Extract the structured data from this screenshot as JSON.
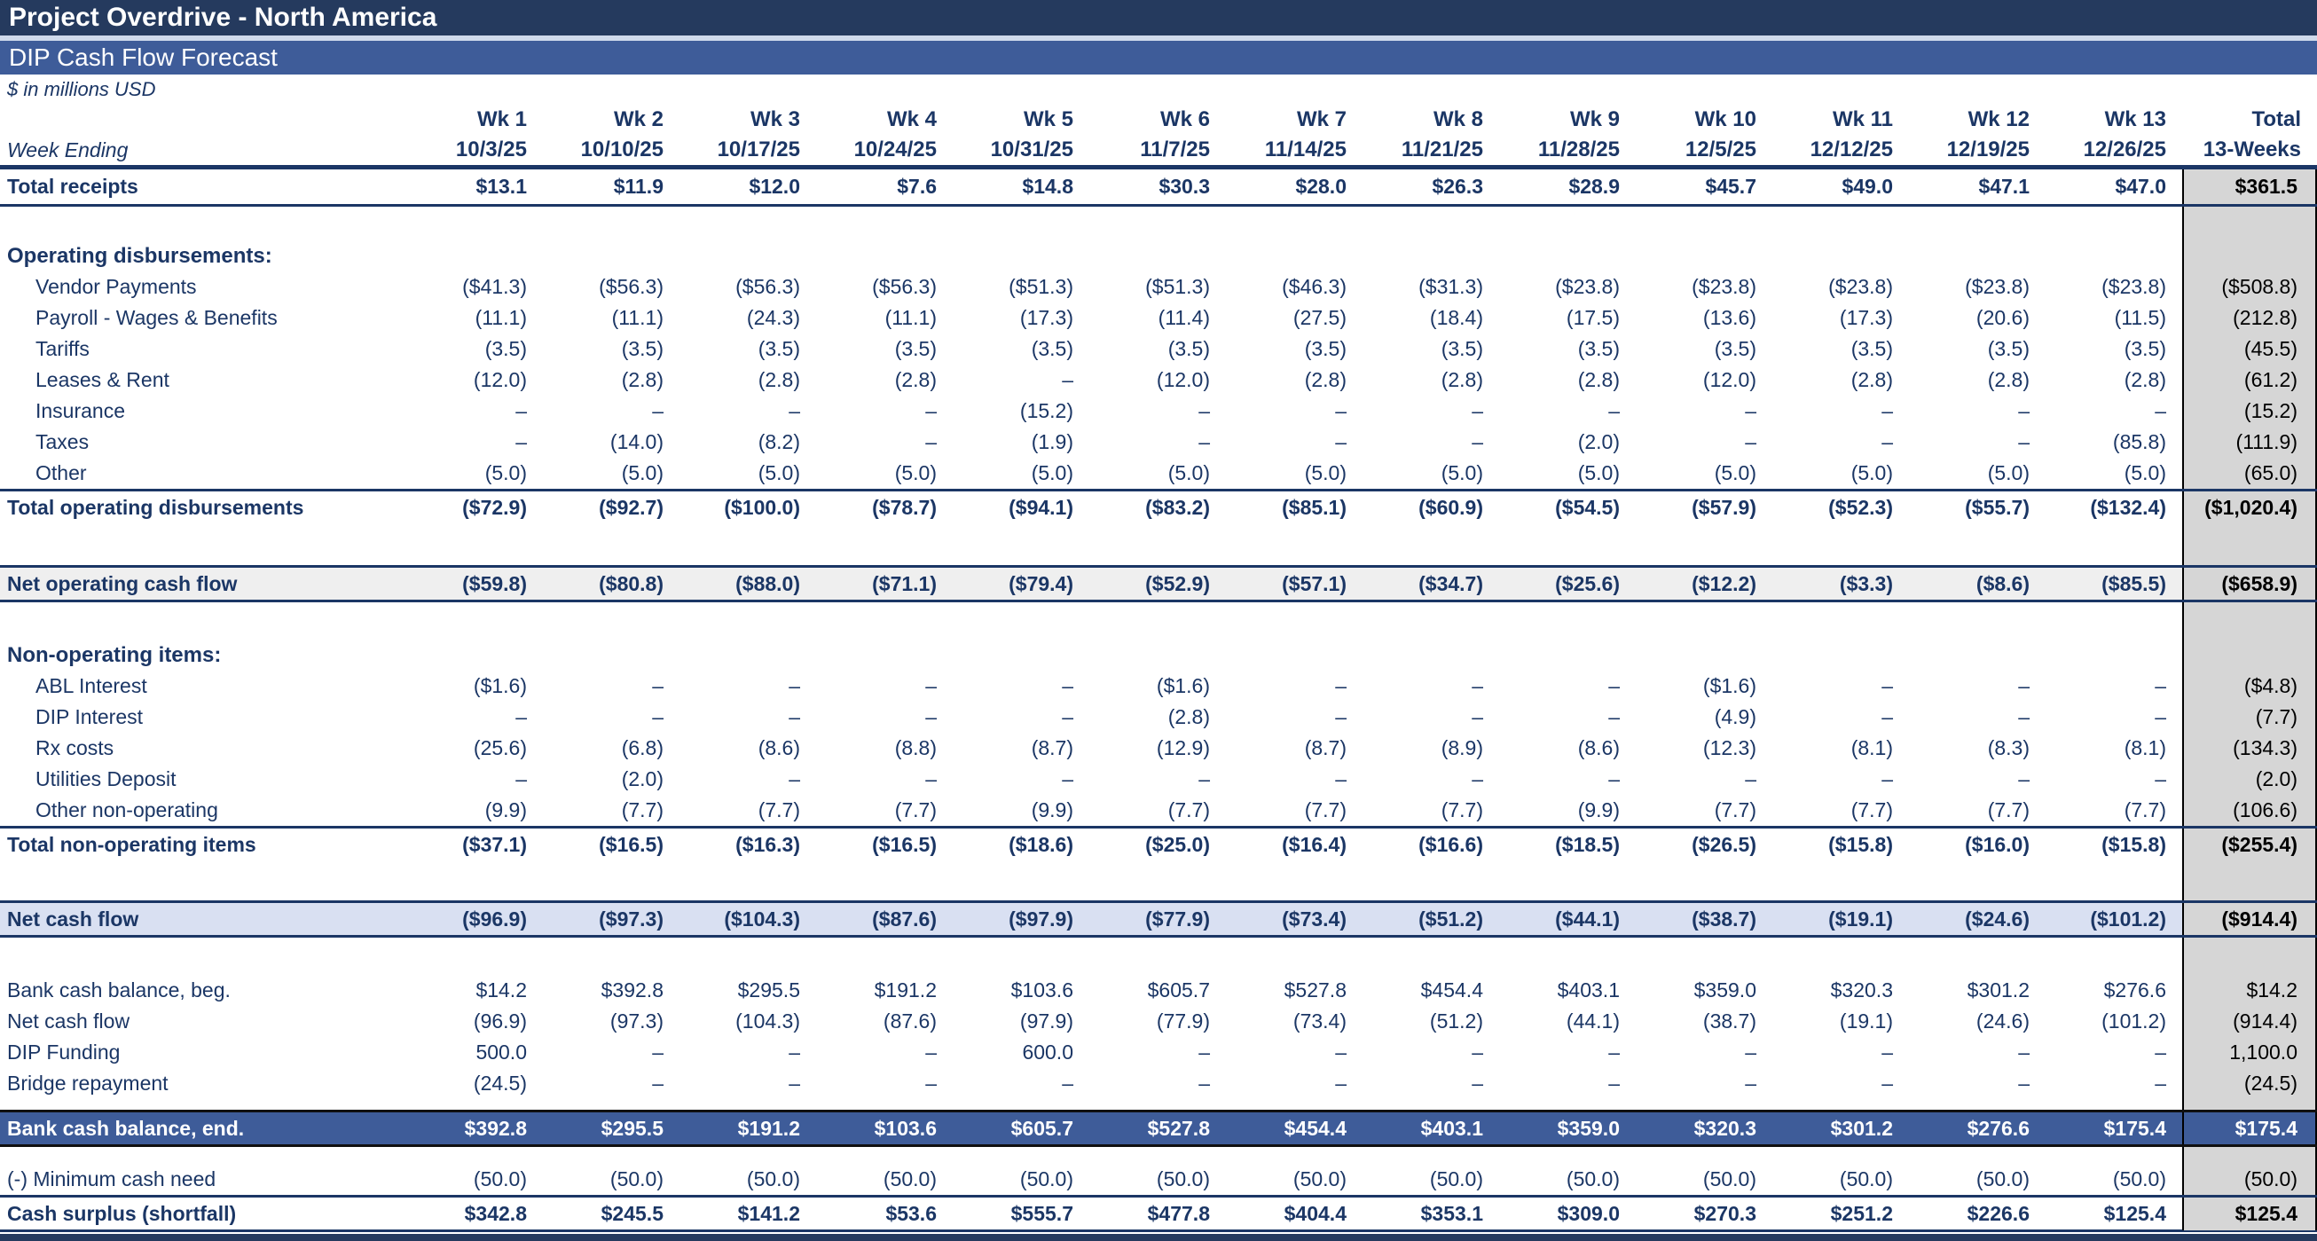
{
  "header": {
    "title": "Project Overdrive - North America",
    "subtitle": "DIP Cash Flow Forecast",
    "units_note": "$ in millions USD",
    "week_ending_label": "Week Ending"
  },
  "columns": {
    "week_names": [
      "Wk 1",
      "Wk 2",
      "Wk 3",
      "Wk 4",
      "Wk 5",
      "Wk 6",
      "Wk 7",
      "Wk 8",
      "Wk 9",
      "Wk 10",
      "Wk 11",
      "Wk 12",
      "Wk 13"
    ],
    "week_dates": [
      "10/3/25",
      "10/10/25",
      "10/17/25",
      "10/24/25",
      "10/31/25",
      "11/7/25",
      "11/14/25",
      "11/21/25",
      "11/28/25",
      "12/5/25",
      "12/12/25",
      "12/19/25",
      "12/26/25"
    ],
    "total_name": "Total",
    "total_date": "13-Weeks"
  },
  "colors": {
    "title_bar": "#253A5E",
    "subtitle_bar": "#3E5C99",
    "text_navy": "#1B3665",
    "net_operating_row_bg": "#EFEFEF",
    "net_cash_flow_row_bg": "#D9E0F2",
    "bank_end_row_bg": "#3E5C99",
    "total_column_bg": "#D6D6D6"
  },
  "table": {
    "rows": [
      {
        "key": "total-receipts",
        "style": "receipts",
        "label": "Total receipts",
        "values": [
          "$13.1",
          "$11.9",
          "$12.0",
          "$7.6",
          "$14.8",
          "$30.3",
          "$28.0",
          "$26.3",
          "$28.9",
          "$45.7",
          "$49.0",
          "$47.1",
          "$47.0"
        ],
        "total": "$361.5"
      },
      {
        "key": "spacer-1",
        "style": "spacer",
        "height": 38
      },
      {
        "key": "operating-disbursements-header",
        "style": "section",
        "label": "Operating disbursements:"
      },
      {
        "key": "vendor-payments",
        "style": "item",
        "label": "Vendor Payments",
        "values": [
          "($41.3)",
          "($56.3)",
          "($56.3)",
          "($56.3)",
          "($51.3)",
          "($51.3)",
          "($46.3)",
          "($31.3)",
          "($23.8)",
          "($23.8)",
          "($23.8)",
          "($23.8)",
          "($23.8)"
        ],
        "total": "($508.8)"
      },
      {
        "key": "payroll",
        "style": "item",
        "label": "Payroll - Wages & Benefits",
        "values": [
          "(11.1)",
          "(11.1)",
          "(24.3)",
          "(11.1)",
          "(17.3)",
          "(11.4)",
          "(27.5)",
          "(18.4)",
          "(17.5)",
          "(13.6)",
          "(17.3)",
          "(20.6)",
          "(11.5)"
        ],
        "total": "(212.8)"
      },
      {
        "key": "tariffs",
        "style": "item",
        "label": "Tariffs",
        "values": [
          "(3.5)",
          "(3.5)",
          "(3.5)",
          "(3.5)",
          "(3.5)",
          "(3.5)",
          "(3.5)",
          "(3.5)",
          "(3.5)",
          "(3.5)",
          "(3.5)",
          "(3.5)",
          "(3.5)"
        ],
        "total": "(45.5)"
      },
      {
        "key": "leases-rent",
        "style": "item",
        "label": "Leases & Rent",
        "values": [
          "(12.0)",
          "(2.8)",
          "(2.8)",
          "(2.8)",
          "–",
          "(12.0)",
          "(2.8)",
          "(2.8)",
          "(2.8)",
          "(12.0)",
          "(2.8)",
          "(2.8)",
          "(2.8)"
        ],
        "total": "(61.2)"
      },
      {
        "key": "insurance",
        "style": "item",
        "label": "Insurance",
        "values": [
          "–",
          "–",
          "–",
          "–",
          "(15.2)",
          "–",
          "–",
          "–",
          "–",
          "–",
          "–",
          "–",
          "–"
        ],
        "total": "(15.2)"
      },
      {
        "key": "taxes",
        "style": "item",
        "label": "Taxes",
        "values": [
          "–",
          "(14.0)",
          "(8.2)",
          "–",
          "(1.9)",
          "–",
          "–",
          "–",
          "(2.0)",
          "–",
          "–",
          "–",
          "(85.8)"
        ],
        "total": "(111.9)"
      },
      {
        "key": "other-operating",
        "style": "item",
        "label": "Other",
        "values": [
          "(5.0)",
          "(5.0)",
          "(5.0)",
          "(5.0)",
          "(5.0)",
          "(5.0)",
          "(5.0)",
          "(5.0)",
          "(5.0)",
          "(5.0)",
          "(5.0)",
          "(5.0)",
          "(5.0)"
        ],
        "total": "(65.0)"
      },
      {
        "key": "total-operating-disbursements",
        "style": "subtotal",
        "label": "Total operating disbursements",
        "values": [
          "($72.9)",
          "($92.7)",
          "($100.0)",
          "($78.7)",
          "($94.1)",
          "($83.2)",
          "($85.1)",
          "($60.9)",
          "($54.5)",
          "($57.9)",
          "($52.3)",
          "($55.7)",
          "($132.4)"
        ],
        "total": "($1,020.4)"
      },
      {
        "key": "spacer-2",
        "style": "spacer",
        "height": 46
      },
      {
        "key": "net-operating-cash-flow",
        "style": "netop",
        "label": "Net operating cash flow",
        "values": [
          "($59.8)",
          "($80.8)",
          "($88.0)",
          "($71.1)",
          "($79.4)",
          "($52.9)",
          "($57.1)",
          "($34.7)",
          "($25.6)",
          "($12.2)",
          "($3.3)",
          "($8.6)",
          "($85.5)"
        ],
        "total": "($658.9)"
      },
      {
        "key": "spacer-3",
        "style": "spacer",
        "height": 42
      },
      {
        "key": "non-operating-items-header",
        "style": "section",
        "label": "Non-operating items:"
      },
      {
        "key": "abl-interest",
        "style": "item",
        "label": "ABL Interest",
        "values": [
          "($1.6)",
          "–",
          "–",
          "–",
          "–",
          "($1.6)",
          "–",
          "–",
          "–",
          "($1.6)",
          "–",
          "–",
          "–"
        ],
        "total": "($4.8)"
      },
      {
        "key": "dip-interest",
        "style": "item",
        "label": "DIP Interest",
        "values": [
          "–",
          "–",
          "–",
          "–",
          "–",
          "(2.8)",
          "–",
          "–",
          "–",
          "(4.9)",
          "–",
          "–",
          "–"
        ],
        "total": "(7.7)"
      },
      {
        "key": "rx-costs",
        "style": "item",
        "label": "Rx costs",
        "values": [
          "(25.6)",
          "(6.8)",
          "(8.6)",
          "(8.8)",
          "(8.7)",
          "(12.9)",
          "(8.7)",
          "(8.9)",
          "(8.6)",
          "(12.3)",
          "(8.1)",
          "(8.3)",
          "(8.1)"
        ],
        "total": "(134.3)"
      },
      {
        "key": "utilities-deposit",
        "style": "item",
        "label": "Utilities Deposit",
        "values": [
          "–",
          "(2.0)",
          "–",
          "–",
          "–",
          "–",
          "–",
          "–",
          "–",
          "–",
          "–",
          "–",
          "–"
        ],
        "total": "(2.0)"
      },
      {
        "key": "other-non-operating",
        "style": "item",
        "label": "Other non-operating",
        "values": [
          "(9.9)",
          "(7.7)",
          "(7.7)",
          "(7.7)",
          "(9.9)",
          "(7.7)",
          "(7.7)",
          "(7.7)",
          "(9.9)",
          "(7.7)",
          "(7.7)",
          "(7.7)",
          "(7.7)"
        ],
        "total": "(106.6)"
      },
      {
        "key": "total-non-operating-items",
        "style": "subtotal",
        "label": "Total non-operating items",
        "values": [
          "($37.1)",
          "($16.5)",
          "($16.3)",
          "($16.5)",
          "($18.6)",
          "($25.0)",
          "($16.4)",
          "($16.6)",
          "($18.5)",
          "($26.5)",
          "($15.8)",
          "($16.0)",
          "($15.8)"
        ],
        "total": "($255.4)"
      },
      {
        "key": "spacer-4",
        "style": "spacer",
        "height": 44
      },
      {
        "key": "net-cash-flow",
        "style": "netcf",
        "label": "Net cash flow",
        "values": [
          "($96.9)",
          "($97.3)",
          "($104.3)",
          "($87.6)",
          "($97.9)",
          "($77.9)",
          "($73.4)",
          "($51.2)",
          "($44.1)",
          "($38.7)",
          "($19.1)",
          "($24.6)",
          "($101.2)"
        ],
        "total": "($914.4)"
      },
      {
        "key": "spacer-5",
        "style": "spacer",
        "height": 42
      },
      {
        "key": "bank-cash-balance-beg",
        "style": "plain",
        "label": "Bank cash balance, beg.",
        "values": [
          "$14.2",
          "$392.8",
          "$295.5",
          "$191.2",
          "$103.6",
          "$605.7",
          "$527.8",
          "$454.4",
          "$403.1",
          "$359.0",
          "$320.3",
          "$301.2",
          "$276.6"
        ],
        "total": "$14.2"
      },
      {
        "key": "net-cash-flow-2",
        "style": "plain",
        "label": "Net cash flow",
        "values": [
          "(96.9)",
          "(97.3)",
          "(104.3)",
          "(87.6)",
          "(97.9)",
          "(77.9)",
          "(73.4)",
          "(51.2)",
          "(44.1)",
          "(38.7)",
          "(19.1)",
          "(24.6)",
          "(101.2)"
        ],
        "total": "(914.4)"
      },
      {
        "key": "dip-funding",
        "style": "plain",
        "label": "DIP Funding",
        "values": [
          "500.0",
          "–",
          "–",
          "–",
          "600.0",
          "–",
          "–",
          "–",
          "–",
          "–",
          "–",
          "–",
          "–"
        ],
        "total": "1,100.0"
      },
      {
        "key": "bridge-repayment",
        "style": "plain",
        "label": "Bridge repayment",
        "values": [
          "(24.5)",
          "–",
          "–",
          "–",
          "–",
          "–",
          "–",
          "–",
          "–",
          "–",
          "–",
          "–",
          "–"
        ],
        "total": "(24.5)"
      },
      {
        "key": "spacer-6",
        "style": "spacer",
        "height": 12
      },
      {
        "key": "bank-cash-balance-end",
        "style": "bankend",
        "label": "Bank cash balance, end.",
        "values": [
          "$392.8",
          "$295.5",
          "$191.2",
          "$103.6",
          "$605.7",
          "$527.8",
          "$454.4",
          "$403.1",
          "$359.0",
          "$320.3",
          "$301.2",
          "$276.6",
          "$175.4"
        ],
        "total": "$175.4"
      },
      {
        "key": "spacer-7",
        "style": "spacer",
        "height": 18
      },
      {
        "key": "minimum-cash-need",
        "style": "mincash",
        "label": "(-) Minimum cash need",
        "values": [
          "(50.0)",
          "(50.0)",
          "(50.0)",
          "(50.0)",
          "(50.0)",
          "(50.0)",
          "(50.0)",
          "(50.0)",
          "(50.0)",
          "(50.0)",
          "(50.0)",
          "(50.0)",
          "(50.0)"
        ],
        "total": "(50.0)"
      },
      {
        "key": "cash-surplus-shortfall",
        "style": "surplus",
        "label": "Cash surplus (shortfall)",
        "values": [
          "$342.8",
          "$245.5",
          "$141.2",
          "$53.6",
          "$555.7",
          "$477.8",
          "$404.4",
          "$353.1",
          "$309.0",
          "$270.3",
          "$251.2",
          "$226.6",
          "$125.4"
        ],
        "total": "$125.4"
      }
    ]
  }
}
